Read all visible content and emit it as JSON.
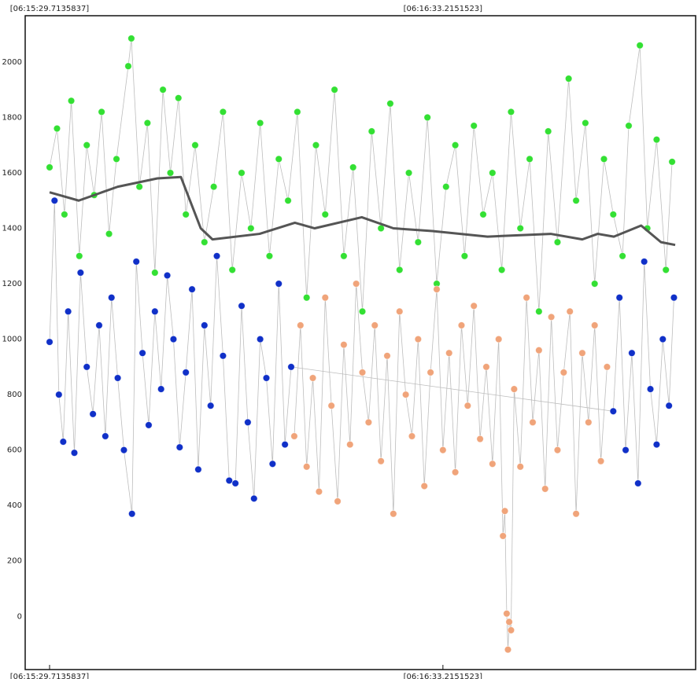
{
  "chart_data": {
    "type": "scatter",
    "xlim": [
      -3.94,
      104.3
    ],
    "ylim": [
      -192,
      2167
    ],
    "xticks": [
      {
        "value": 0,
        "label": "[06:15:29.7135837]"
      },
      {
        "value": 63.5015686,
        "label": "[06:16:33.2151523]"
      }
    ],
    "yticks": [
      0,
      200,
      400,
      600,
      800,
      1000,
      1200,
      1400,
      1600,
      1800,
      2000
    ],
    "grid": true,
    "series": [
      {
        "type": "scatter",
        "color": "#33e033",
        "x": [
          0,
          1.2,
          2.4,
          3.5,
          4.8,
          6,
          7.2,
          8.4,
          9.6,
          10.8,
          12.7,
          13.2,
          14.5,
          15.8,
          17,
          18.3,
          19.5,
          20.8,
          22,
          23.5,
          25,
          26.5,
          28,
          29.5,
          31,
          32.5,
          34,
          35.5,
          37,
          38.5,
          40,
          41.5,
          43,
          44.5,
          46,
          47.5,
          49,
          50.5,
          52,
          53.5,
          55,
          56.5,
          58,
          59.5,
          61,
          62.5,
          64,
          65.5,
          67,
          68.5,
          70,
          71.5,
          73,
          74.5,
          76,
          77.5,
          79,
          80.5,
          82,
          83.8,
          85,
          86.5,
          88,
          89.5,
          91,
          92.5,
          93.5,
          95.3,
          96.5,
          98,
          99.5,
          100.5
        ],
        "values": [
          1620,
          1760,
          1450,
          1860,
          1300,
          1700,
          1520,
          1820,
          1380,
          1650,
          1985,
          2085,
          1550,
          1780,
          1240,
          1900,
          1600,
          1870,
          1450,
          1700,
          1350,
          1550,
          1820,
          1250,
          1600,
          1400,
          1780,
          1300,
          1650,
          1500,
          1820,
          1150,
          1700,
          1450,
          1900,
          1300,
          1620,
          1100,
          1750,
          1400,
          1850,
          1250,
          1600,
          1350,
          1800,
          1200,
          1550,
          1700,
          1300,
          1770,
          1450,
          1600,
          1250,
          1820,
          1400,
          1650,
          1100,
          1750,
          1350,
          1940,
          1500,
          1780,
          1200,
          1650,
          1450,
          1300,
          1770,
          2060,
          1400,
          1720,
          1250,
          1640
        ]
      },
      {
        "type": "scatter",
        "color": "#1030c8",
        "x": [
          0,
          0.8,
          1.5,
          2.2,
          3,
          4,
          5,
          6,
          7,
          8,
          9,
          10,
          11,
          12,
          13.3,
          14,
          15,
          16,
          17,
          18,
          19,
          20,
          21,
          22,
          23,
          24,
          25,
          26,
          27,
          28,
          29,
          30,
          31,
          32,
          33,
          34,
          35,
          36,
          37,
          38,
          39,
          91,
          92,
          93,
          94,
          95,
          96,
          97,
          98,
          99,
          100,
          100.8
        ],
        "values": [
          990,
          1500,
          800,
          630,
          1100,
          590,
          1240,
          900,
          730,
          1050,
          650,
          1150,
          860,
          600,
          370,
          1280,
          950,
          690,
          1100,
          820,
          1230,
          1000,
          610,
          880,
          1180,
          530,
          1050,
          760,
          1300,
          940,
          490,
          480,
          1120,
          700,
          425,
          1000,
          860,
          550,
          1200,
          620,
          900,
          740,
          1150,
          600,
          950,
          480,
          1280,
          820,
          620,
          1000,
          760,
          1150
        ]
      },
      {
        "type": "scatter",
        "color": "#f0a47a",
        "x": [
          39.5,
          40.5,
          41.5,
          42.5,
          43.5,
          44.5,
          45.5,
          46.5,
          47.5,
          48.5,
          49.5,
          50.5,
          51.5,
          52.5,
          53.5,
          54.5,
          55.5,
          56.5,
          57.5,
          58.5,
          59.5,
          60.5,
          61.5,
          62.5,
          63.5,
          64.5,
          65.5,
          66.5,
          67.5,
          68.5,
          69.5,
          70.5,
          71.5,
          72.5,
          73.2,
          73.5,
          73.8,
          74,
          74.2,
          74.5,
          75,
          76,
          77,
          78,
          79,
          80,
          81,
          82,
          83,
          84,
          85,
          86,
          87,
          88,
          89,
          90
        ],
        "values": [
          650,
          1050,
          540,
          860,
          450,
          1150,
          760,
          415,
          980,
          620,
          1200,
          880,
          700,
          1050,
          560,
          940,
          370,
          1100,
          800,
          650,
          1000,
          470,
          880,
          1180,
          600,
          950,
          520,
          1050,
          760,
          1120,
          640,
          900,
          550,
          1000,
          290,
          380,
          10,
          -120,
          -20,
          -50,
          820,
          540,
          1150,
          700,
          960,
          460,
          1080,
          600,
          880,
          1100,
          370,
          950,
          700,
          1050,
          560,
          900
        ]
      },
      {
        "type": "line",
        "color": "#555555",
        "x": [
          0,
          4.7,
          11,
          17.4,
          21.2,
          24.4,
          26.3,
          33.9,
          39.6,
          42.8,
          50.4,
          55.5,
          61.8,
          70.7,
          80.9,
          86,
          88.5,
          91.1,
          95.5,
          98.7,
          101
        ],
        "values": [
          1530,
          1500,
          1550,
          1580,
          1585,
          1400,
          1360,
          1380,
          1420,
          1400,
          1440,
          1400,
          1390,
          1370,
          1380,
          1360,
          1380,
          1370,
          1410,
          1350,
          1340
        ]
      }
    ]
  }
}
